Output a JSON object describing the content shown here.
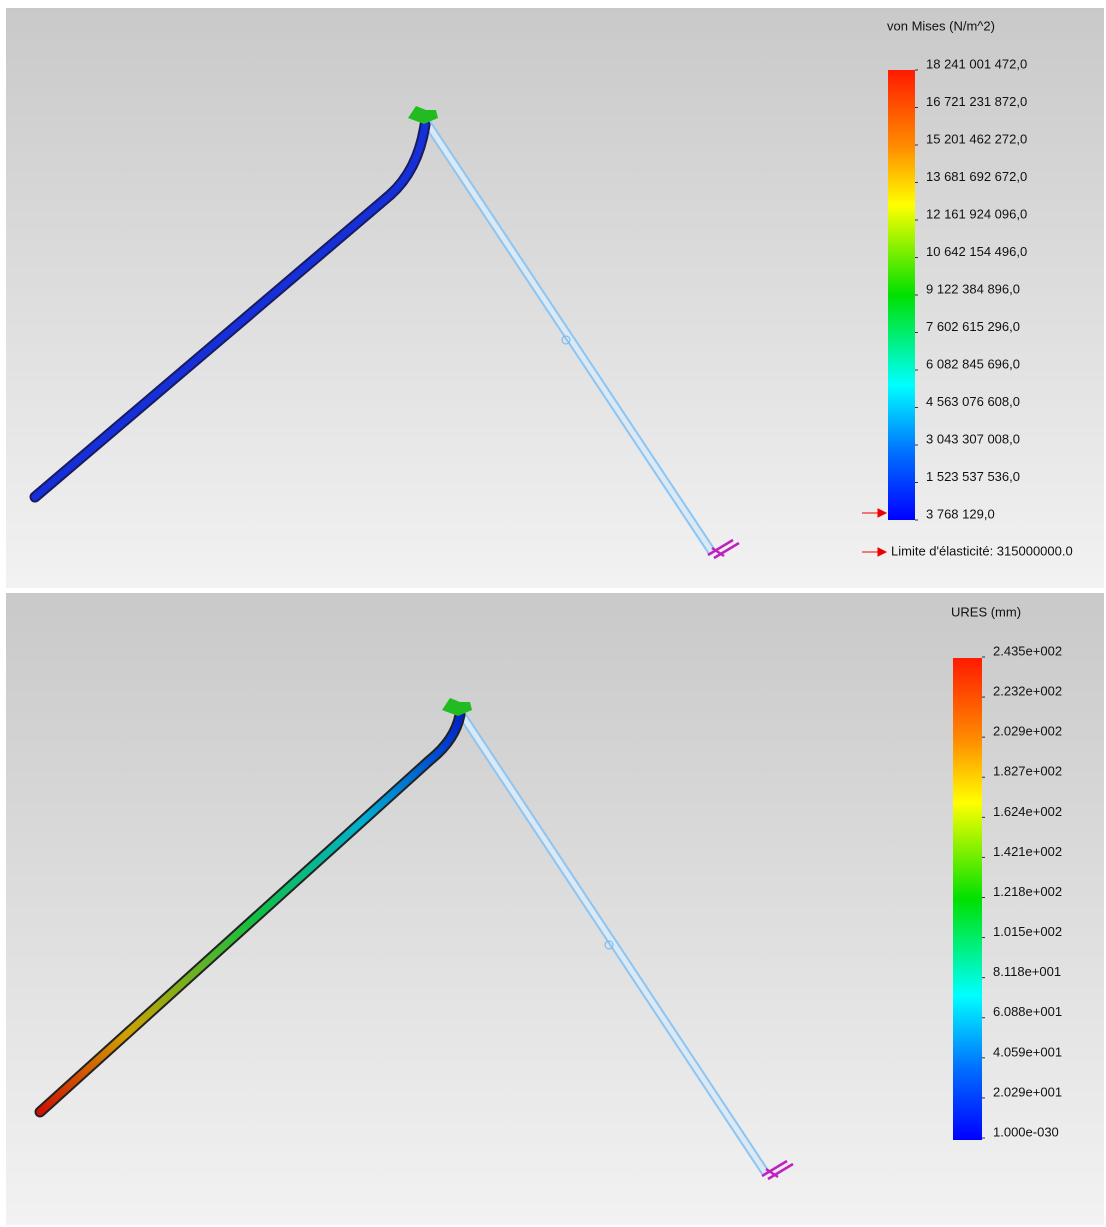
{
  "panels": [
    {
      "legend": {
        "title": "von Mises (N/m^2)",
        "labels": [
          "18 241 001 472,0",
          "16 721 231 872,0",
          "15 201 462 272,0",
          "13 681 692 672,0",
          "12 161 924 096,0",
          "10 642 154 496,0",
          "9 122 384 896,0",
          "7 602 615 296,0",
          "6 082 845 696,0",
          "4 563 076 608,0",
          "3 043 307 008,0",
          "1 523 537 536,0",
          "3 768 129,0"
        ]
      },
      "note": "Limite d'élasticité: 315000000.0"
    },
    {
      "legend": {
        "title": "URES (mm)",
        "labels": [
          "2.435e+002",
          "2.232e+002",
          "2.029e+002",
          "1.827e+002",
          "1.624e+002",
          "1.421e+002",
          "1.218e+002",
          "1.015e+002",
          "8.118e+001",
          "6.088e+001",
          "4.059e+001",
          "2.029e+001",
          "1.000e-030"
        ]
      }
    }
  ]
}
